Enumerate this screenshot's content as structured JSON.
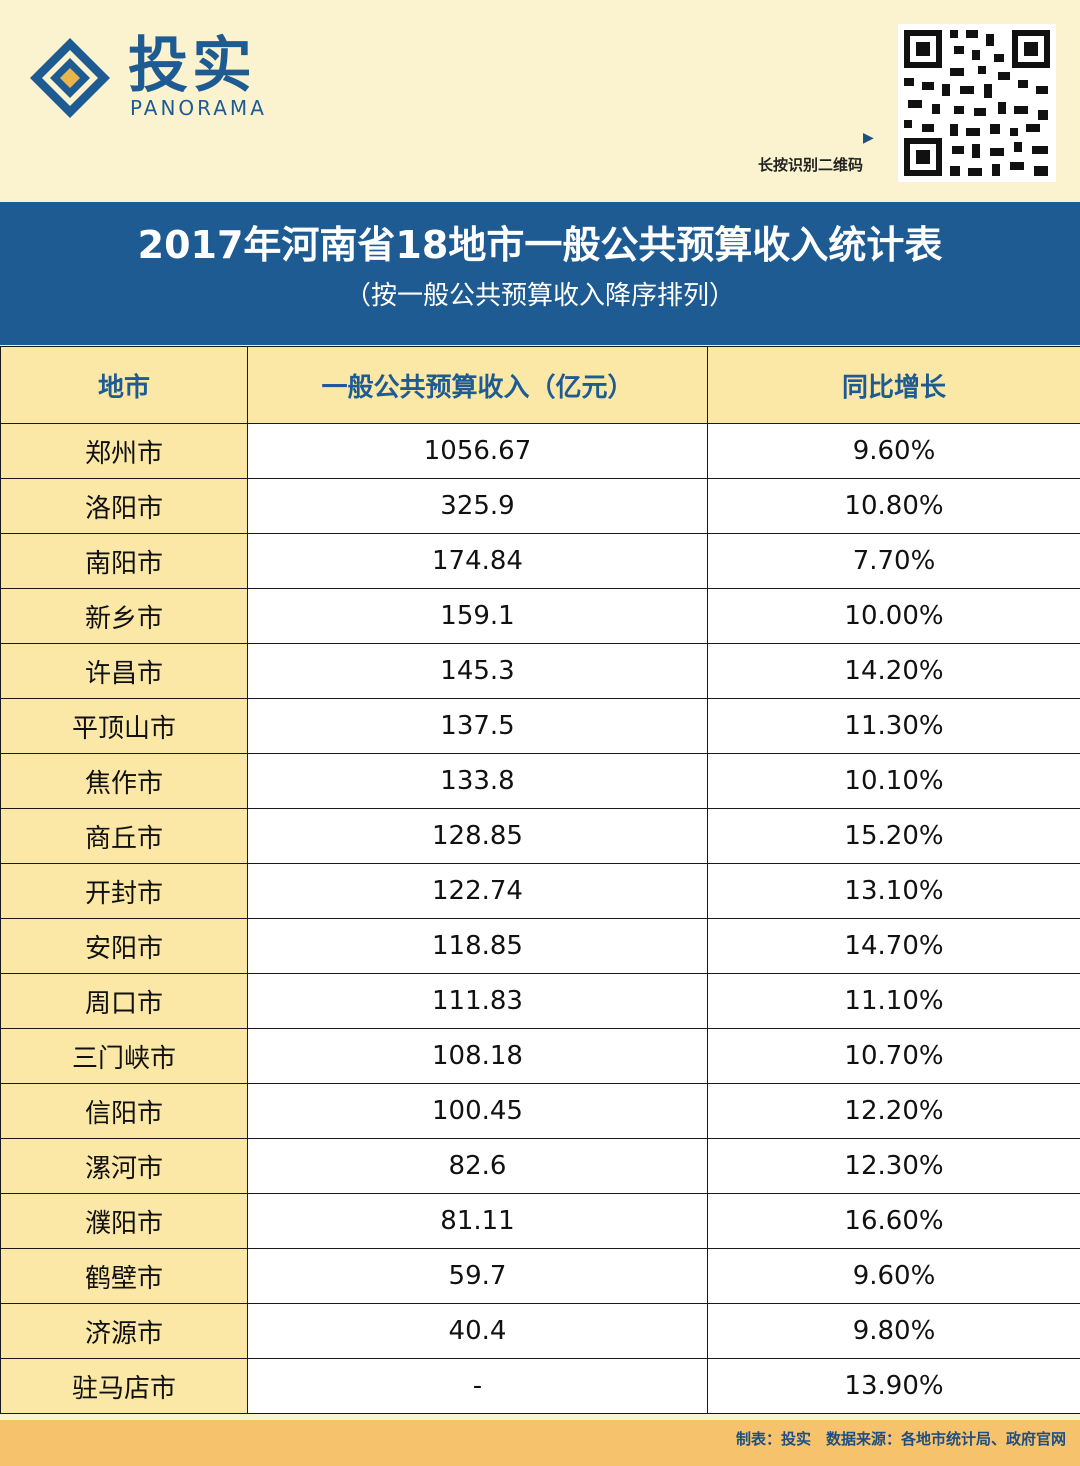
{
  "brand": {
    "name_cn": "投实",
    "name_en": "PANORAMA"
  },
  "qr": {
    "hint": "长按识别二维码"
  },
  "title": "2017年河南省18地市一般公共预算收入统计表",
  "subtitle": "（按一般公共预算收入降序排列）",
  "table": {
    "headers": [
      "地市",
      "一般公共预算收入（亿元）",
      "同比增长"
    ],
    "rows": [
      [
        "郑州市",
        "1056.67",
        "9.60%"
      ],
      [
        "洛阳市",
        "325.9",
        "10.80%"
      ],
      [
        "南阳市",
        "174.84",
        "7.70%"
      ],
      [
        "新乡市",
        "159.1",
        "10.00%"
      ],
      [
        "许昌市",
        "145.3",
        "14.20%"
      ],
      [
        "平顶山市",
        "137.5",
        "11.30%"
      ],
      [
        "焦作市",
        "133.8",
        "10.10%"
      ],
      [
        "商丘市",
        "128.85",
        "15.20%"
      ],
      [
        "开封市",
        "122.74",
        "13.10%"
      ],
      [
        "安阳市",
        "118.85",
        "14.70%"
      ],
      [
        "周口市",
        "111.83",
        "11.10%"
      ],
      [
        "三门峡市",
        "108.18",
        "10.70%"
      ],
      [
        "信阳市",
        "100.45",
        "12.20%"
      ],
      [
        "漯河市",
        "82.6",
        "12.30%"
      ],
      [
        "濮阳市",
        "81.11",
        "16.60%"
      ],
      [
        "鹤壁市",
        "59.7",
        "9.60%"
      ],
      [
        "济源市",
        "40.4",
        "9.80%"
      ],
      [
        "驻马店市",
        "-",
        "13.90%"
      ]
    ]
  },
  "footer": {
    "text": "制表：投实　数据来源：各地市统计局、政府官网"
  },
  "colors": {
    "navy": "#1e5b93",
    "cream": "#fbf3cf",
    "header_cell": "#fbe8a6",
    "footer": "#f6c36c"
  }
}
